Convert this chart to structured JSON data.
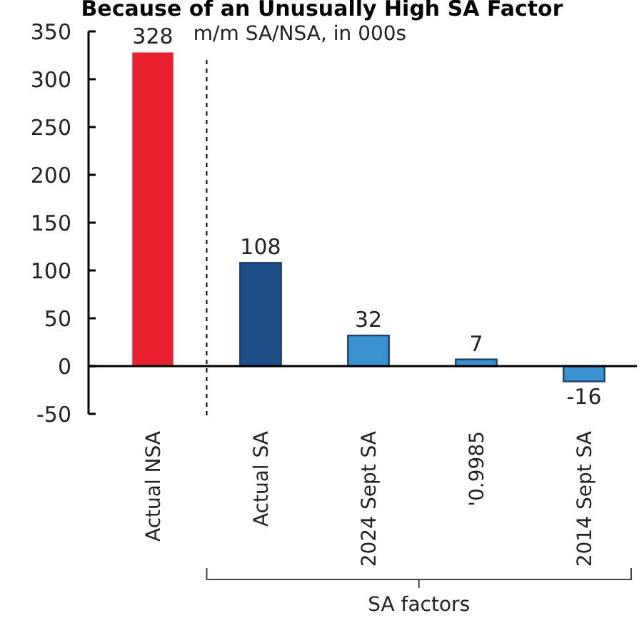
{
  "chart_data": {
    "type": "bar",
    "title": "Because of an Unusually High SA Factor",
    "subtitle": "m/m SA/NSA, in 000s",
    "categories": [
      "Actual NSA",
      "Actual SA",
      "2024 Sept SA",
      "'0.9985",
      "2014 Sept SA"
    ],
    "values": [
      328,
      108,
      32,
      7,
      -16
    ],
    "colors": [
      "#e8202f",
      "#1f4e89",
      "#3a93d0",
      "#3a93d0",
      "#3a93d0"
    ],
    "ylim": [
      -50,
      350
    ],
    "yticks": [
      -50,
      0,
      50,
      100,
      150,
      200,
      250,
      300,
      350
    ],
    "data_labels": true,
    "annotations": [
      "SA factors"
    ]
  }
}
